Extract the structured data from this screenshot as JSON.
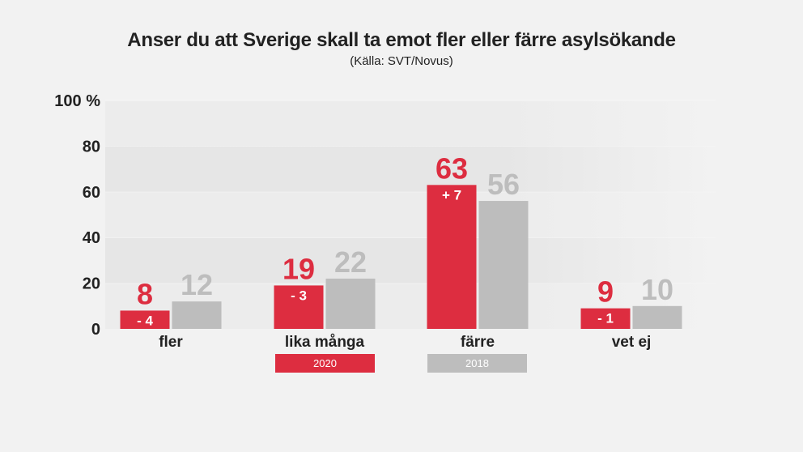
{
  "title": "Anser du att Sverige skall ta emot fler eller färre asylsökande",
  "subtitle": "(Källa: SVT/Novus)",
  "colors": {
    "series_2020": "#dd2d40",
    "series_2018": "#bdbdbd",
    "text": "#222222"
  },
  "chart_data": {
    "type": "bar",
    "categories": [
      "fler",
      "lika många",
      "färre",
      "vet ej"
    ],
    "series": [
      {
        "name": "2020",
        "values": [
          8,
          19,
          63,
          9
        ],
        "changes": [
          "- 4",
          "- 3",
          "+ 7",
          "- 1"
        ]
      },
      {
        "name": "2018",
        "values": [
          12,
          22,
          56,
          10
        ]
      }
    ],
    "y_ticks": [
      "0",
      "20",
      "40",
      "60",
      "80",
      "100 %"
    ],
    "ylim": [
      0,
      100
    ],
    "grid": true,
    "legend": "bottom-center"
  }
}
